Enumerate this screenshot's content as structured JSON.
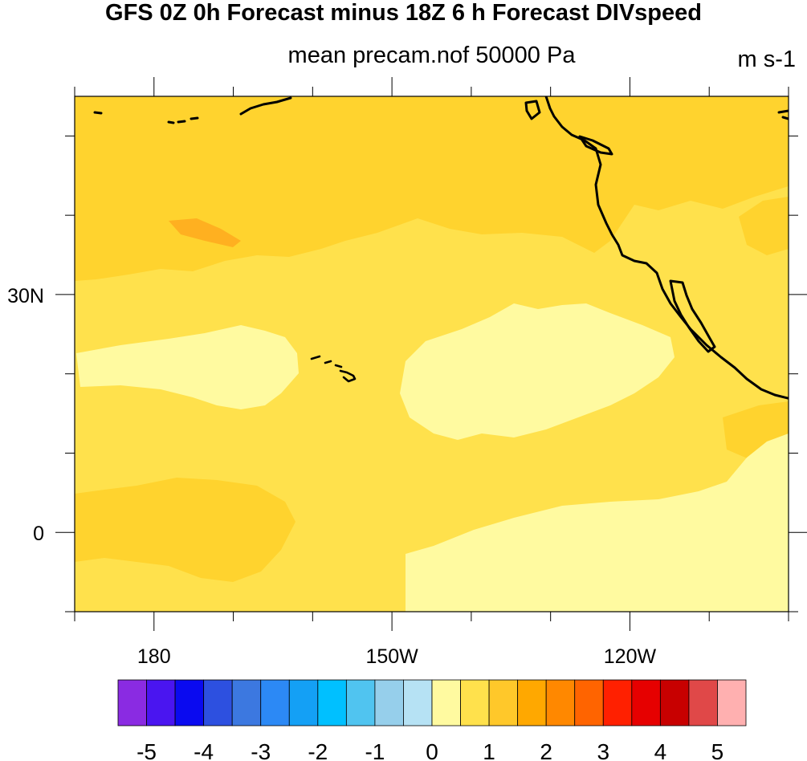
{
  "title": "GFS 0Z 0h Forecast minus 18Z 6 h Forecast DIVspeed",
  "subtitle": "mean precam.nof 50000 Pa",
  "units": "m s-1",
  "map": {
    "projection": "cylindrical equidistant",
    "lon_range": [
      -190,
      -100
    ],
    "lat_range": [
      -10,
      55
    ],
    "field_mean_value_range": [
      0,
      2
    ]
  },
  "lat_labels": [
    {
      "lat": 30,
      "label": "30N"
    },
    {
      "lat": 0,
      "label": "0"
    }
  ],
  "lon_labels": [
    {
      "lon": -180,
      "label": "180"
    },
    {
      "lon": -150,
      "label": "150W"
    },
    {
      "lon": -120,
      "label": "120W"
    }
  ],
  "colorbar": {
    "colors": [
      "#8a2be2",
      "#4a15f0",
      "#0a0af0",
      "#2d50e0",
      "#3c78e0",
      "#2c89f5",
      "#14a0f5",
      "#00c0ff",
      "#50c4f0",
      "#96cfeb",
      "#b6e2f4",
      "#fffaa0",
      "#ffe14c",
      "#ffc82a",
      "#ffa800",
      "#ff8800",
      "#ff6400",
      "#ff2000",
      "#e60000",
      "#c80000",
      "#e04848",
      "#ffb0b0"
    ],
    "labels": [
      "-5",
      "-4",
      "-3",
      "-2",
      "-1",
      "0",
      "1",
      "2",
      "3",
      "4",
      "5"
    ]
  },
  "colors": {
    "base_fill": "#ffe14c",
    "light_fill": "#fffaa0",
    "medium_fill": "#ffd32e",
    "dark_fill": "#ffb020",
    "coastline": "#000000"
  }
}
